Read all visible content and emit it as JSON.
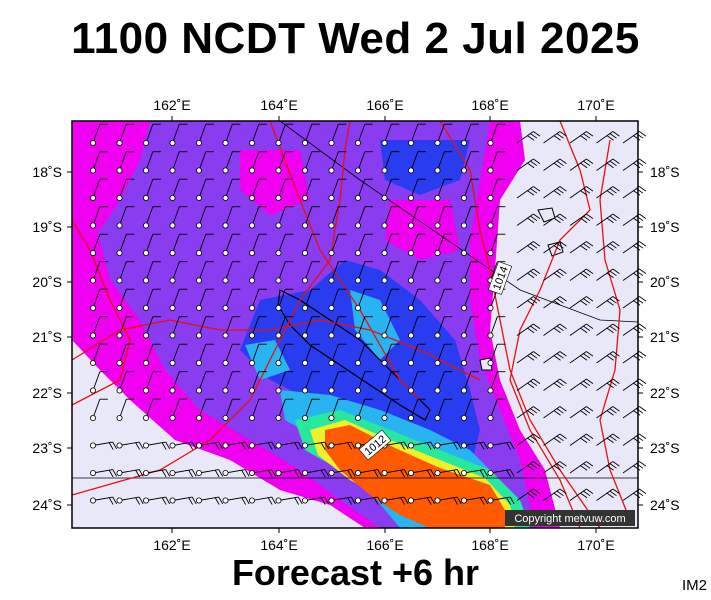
{
  "title": "1100 NCDT Wed 2 Jul 2025",
  "footer": "Forecast +6 hr",
  "image_tag": "IM2",
  "copyright": "Copyright metvuw.com",
  "map": {
    "lon_ticks": [
      "162˚E",
      "164˚E",
      "166˚E",
      "168˚E",
      "170˚E"
    ],
    "lat_ticks": [
      "18˚S",
      "19˚S",
      "20˚S",
      "21˚S",
      "22˚S",
      "23˚S",
      "24˚S"
    ],
    "isobar_labels": [
      "1014",
      "1012"
    ]
  },
  "colors": {
    "background": "#e8e8f8",
    "magenta": "#f000f0",
    "violet": "#8a3cf0",
    "blue": "#2a3cf0",
    "cyan": "#28b4f0",
    "green": "#28e8a0",
    "yellow": "#f0f028",
    "orange": "#ff5a00",
    "isobar": "#e81010"
  }
}
